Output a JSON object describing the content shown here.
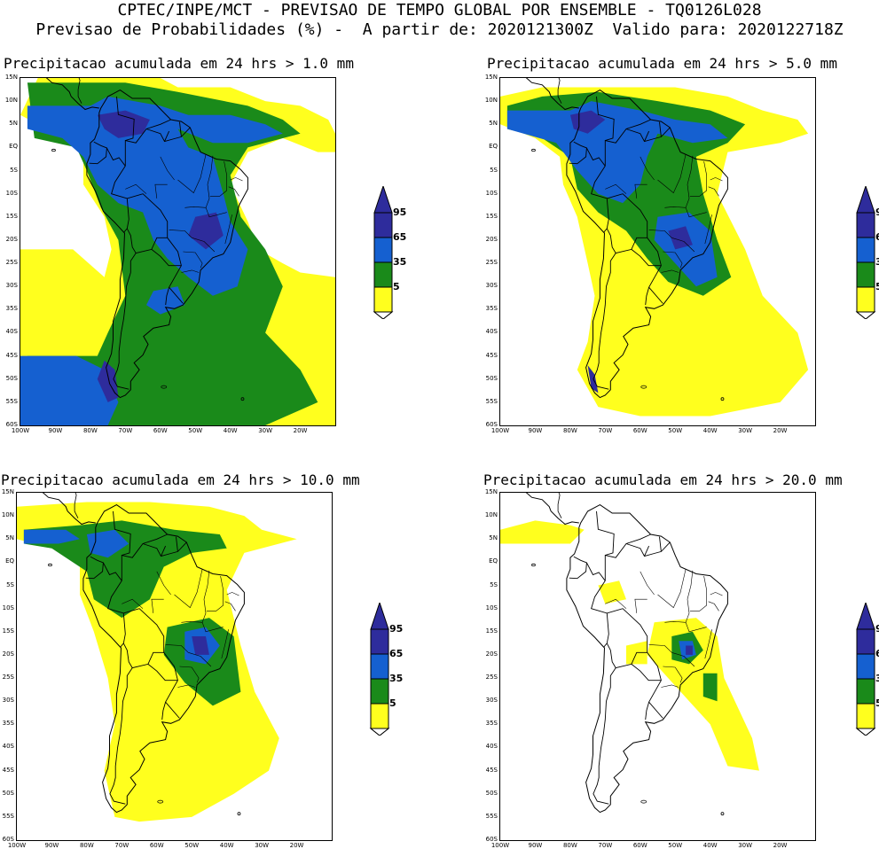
{
  "header": {
    "line1": "CPTEC/INPE/MCT - PREVISAO DE TEMPO GLOBAL POR ENSEMBLE - TQ0126L028",
    "line2": "Previsao de Probabilidades (%) -  A partir de: 2020121300Z  Valido para: 2020122718Z"
  },
  "lat_labels": [
    "15N",
    "10N",
    "5N",
    "EQ",
    "5S",
    "10S",
    "15S",
    "20S",
    "25S",
    "30S",
    "35S",
    "40S",
    "45S",
    "50S",
    "55S",
    "60S"
  ],
  "lon_labels": [
    "100W",
    "90W",
    "80W",
    "70W",
    "60W",
    "50W",
    "40W",
    "30W",
    "20W"
  ],
  "legend": {
    "labels": [
      "95",
      "65",
      "35",
      "5"
    ],
    "colors": {
      "p95": "#2e2c9c",
      "p65": "#1560d0",
      "p35": "#1a8a1a",
      "p5": "#ffff1e"
    }
  },
  "panels": [
    {
      "title": "Precipitacao acumulada em 24 hrs > 1.0 mm",
      "threshold_mm": 1.0
    },
    {
      "title": "Precipitacao acumulada em 24 hrs > 5.0 mm",
      "threshold_mm": 5.0
    },
    {
      "title": "Precipitacao acumulada em 24 hrs > 10.0 mm",
      "threshold_mm": 10.0
    },
    {
      "title": "Precipitacao acumulada em 24 hrs > 20.0 mm",
      "threshold_mm": 20.0
    }
  ]
}
